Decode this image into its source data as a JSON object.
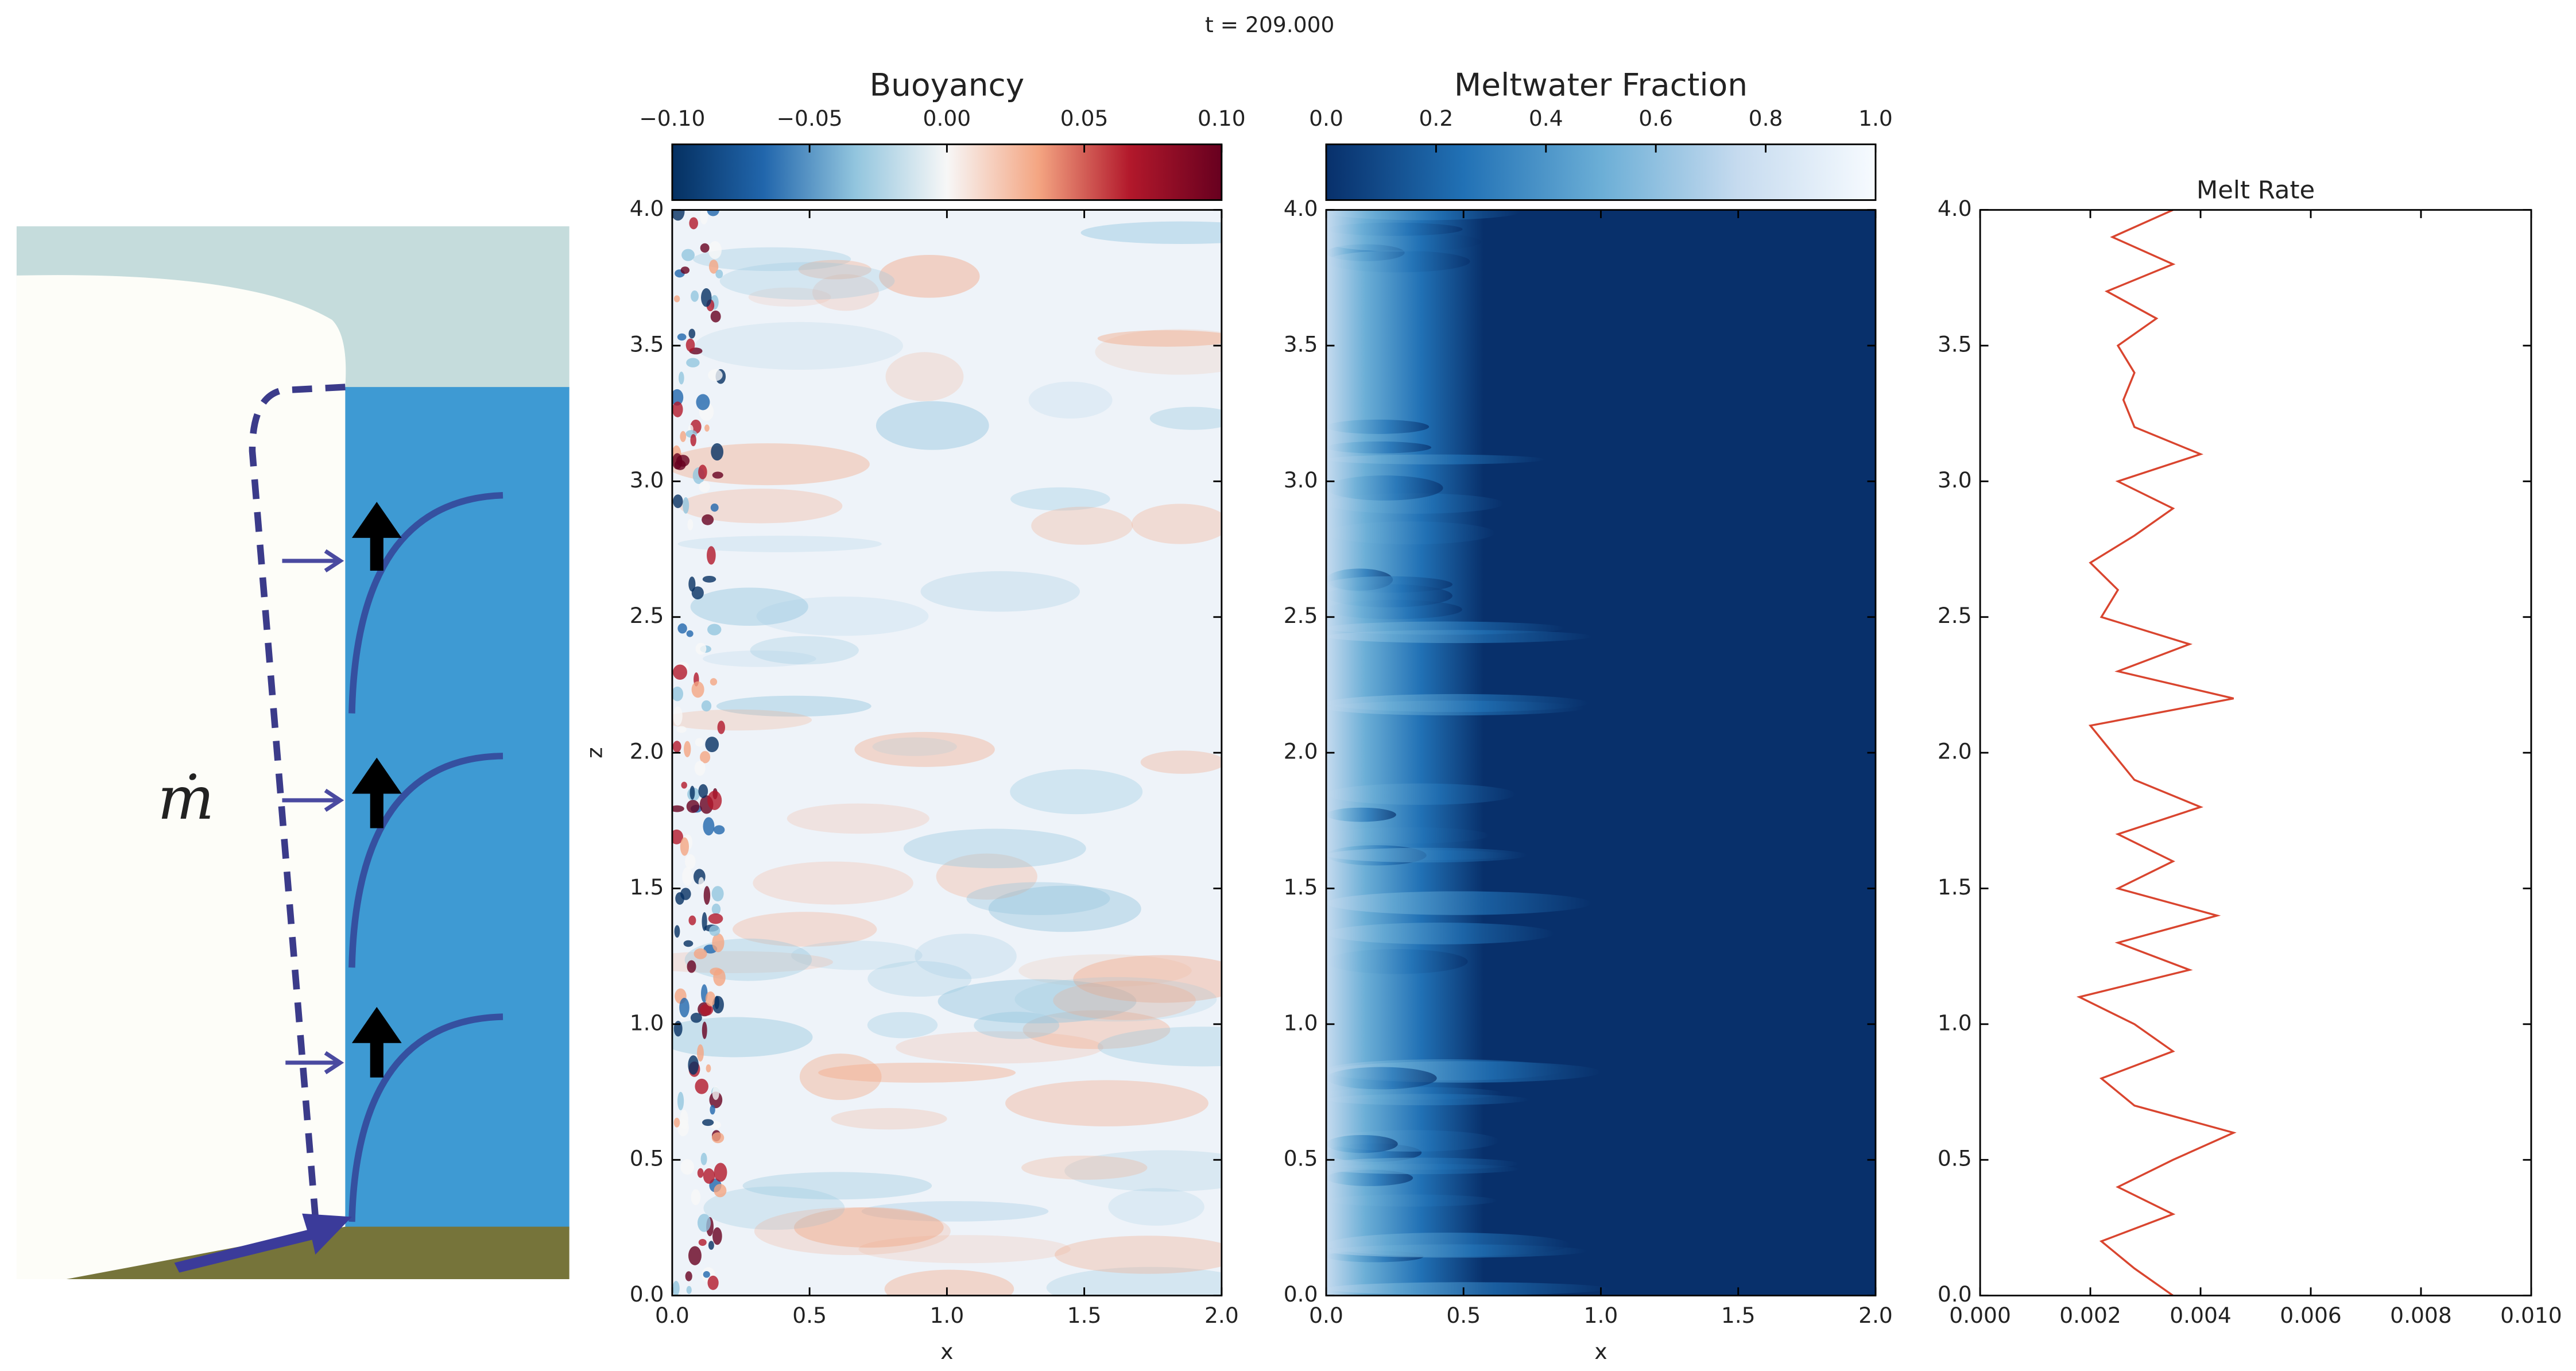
{
  "suptitle": "t = 209.000",
  "schematic": {
    "label": "ṁ"
  },
  "chart_data": [
    {
      "type": "heatmap",
      "title": "Buoyancy",
      "xlabel": "x",
      "ylabel": "z",
      "xlim": [
        0,
        2
      ],
      "xticks": [
        {
          "value": 0,
          "label": "0.0"
        },
        0.5,
        {
          "value": 1,
          "label": "1.0"
        },
        1.5,
        {
          "value": 2,
          "label": "2.0"
        }
      ],
      "ylim": [
        0,
        4
      ],
      "yticks": [
        {
          "value": 0,
          "label": "0.0"
        },
        0.5,
        {
          "value": 1,
          "label": "1.0"
        },
        1.5,
        {
          "value": 2,
          "label": "2.0"
        },
        2.5,
        {
          "value": 3,
          "label": "3.0"
        },
        3.5,
        {
          "value": 4,
          "label": "4.0"
        }
      ],
      "colorbar_lim": [
        -0.1,
        0.1
      ],
      "colorbar_ticks": [
        {
          "value": -0.1,
          "label": "−0.10"
        },
        {
          "value": -0.05,
          "label": "−0.05"
        },
        {
          "value": 0,
          "label": "0.00"
        },
        0.05,
        {
          "value": 0.1,
          "label": "0.10"
        }
      ],
      "colormap": [
        "#053061",
        "#2166ac",
        "#92c5de",
        "#f7f7f7",
        "#f4a582",
        "#b2182b",
        "#67001f"
      ]
    },
    {
      "type": "heatmap",
      "title": "Meltwater Fraction",
      "xlabel": "x",
      "xlim": [
        0,
        2
      ],
      "xticks": [
        {
          "value": 0,
          "label": "0.0"
        },
        0.5,
        {
          "value": 1,
          "label": "1.0"
        },
        1.5,
        {
          "value": 2,
          "label": "2.0"
        }
      ],
      "ylim": [
        0,
        4
      ],
      "yticks": [
        {
          "value": 0,
          "label": "0.0"
        },
        0.5,
        {
          "value": 1,
          "label": "1.0"
        },
        1.5,
        {
          "value": 2,
          "label": "2.0"
        },
        2.5,
        {
          "value": 3,
          "label": "3.0"
        },
        3.5,
        {
          "value": 4,
          "label": "4.0"
        }
      ],
      "colorbar_lim": [
        0,
        1
      ],
      "colorbar_ticks": [
        {
          "value": 0,
          "label": "0.0"
        },
        0.2,
        0.4,
        0.6,
        0.8,
        {
          "value": 1,
          "label": "1.0"
        }
      ],
      "colormap": [
        "#08306b",
        "#2171b5",
        "#6baed6",
        "#c6dbef",
        "#f7fbff"
      ]
    },
    {
      "type": "line",
      "title": "Melt Rate",
      "color": "#d9452f",
      "xlim": [
        0,
        0.01
      ],
      "xticks": [
        {
          "value": 0,
          "label": "0.000"
        },
        {
          "value": 0.002,
          "label": "0.002"
        },
        {
          "value": 0.004,
          "label": "0.004"
        },
        {
          "value": 0.006,
          "label": "0.006"
        },
        {
          "value": 0.008,
          "label": "0.008"
        },
        {
          "value": 0.01,
          "label": "0.010"
        }
      ],
      "ylim": [
        0,
        4
      ],
      "yticks": [
        {
          "value": 0,
          "label": "0.0"
        },
        0.5,
        {
          "value": 1,
          "label": "1.0"
        },
        1.5,
        {
          "value": 2,
          "label": "2.0"
        },
        2.5,
        {
          "value": 3,
          "label": "3.0"
        },
        3.5,
        {
          "value": 4,
          "label": "4.0"
        }
      ],
      "z": [
        0,
        0.1,
        0.2,
        0.3,
        0.4,
        0.5,
        0.6,
        0.7,
        0.8,
        0.9,
        1,
        1.1,
        1.2,
        1.3,
        1.4,
        1.5,
        1.6,
        1.7,
        1.8,
        1.9,
        2,
        2.1,
        2.2,
        2.3,
        2.4,
        2.5,
        2.6,
        2.7,
        2.8,
        2.9,
        3,
        3.1,
        3.2,
        3.3,
        3.4,
        3.5,
        3.6,
        3.7,
        3.8,
        3.9,
        4
      ],
      "values": [
        0.0035,
        0.0028,
        0.0022,
        0.0035,
        0.0025,
        0.0035,
        0.0046,
        0.0028,
        0.0022,
        0.0035,
        0.0028,
        0.0018,
        0.0038,
        0.0025,
        0.0043,
        0.0025,
        0.0035,
        0.0025,
        0.004,
        0.0028,
        0.0024,
        0.002,
        0.0046,
        0.0025,
        0.0038,
        0.0022,
        0.0025,
        0.002,
        0.0028,
        0.0035,
        0.0025,
        0.004,
        0.0028,
        0.0026,
        0.0028,
        0.0025,
        0.0032,
        0.0023,
        0.0035,
        0.0024,
        0.0035
      ]
    }
  ]
}
